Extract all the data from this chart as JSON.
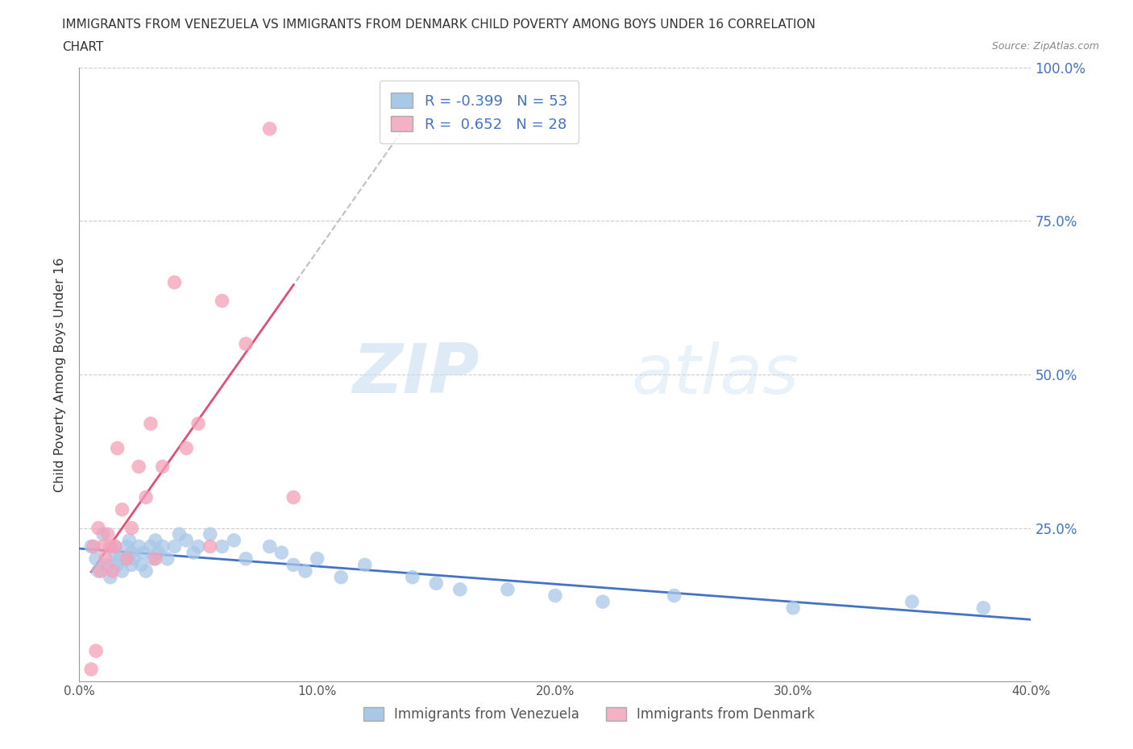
{
  "title_line1": "IMMIGRANTS FROM VENEZUELA VS IMMIGRANTS FROM DENMARK CHILD POVERTY AMONG BOYS UNDER 16 CORRELATION",
  "title_line2": "CHART",
  "source_text": "Source: ZipAtlas.com",
  "ylabel": "Child Poverty Among Boys Under 16",
  "watermark_zip": "ZIP",
  "watermark_atlas": "atlas",
  "r_venezuela": -0.399,
  "n_venezuela": 53,
  "r_denmark": 0.652,
  "n_denmark": 28,
  "xlim": [
    0.0,
    0.4
  ],
  "ylim": [
    0.0,
    1.0
  ],
  "yticks": [
    0.0,
    0.25,
    0.5,
    0.75,
    1.0
  ],
  "ytick_labels_right": [
    "",
    "25.0%",
    "50.0%",
    "75.0%",
    "100.0%"
  ],
  "xticks": [
    0.0,
    0.1,
    0.2,
    0.3,
    0.4
  ],
  "xtick_labels": [
    "0.0%",
    "10.0%",
    "20.0%",
    "30.0%",
    "40.0%"
  ],
  "color_venezuela": "#a8c8e8",
  "color_denmark": "#f4a0b8",
  "line_color_venezuela": "#4472c4",
  "line_color_denmark": "#e0507a",
  "line_color_denmark_dashed": "#b0b0b0",
  "legend_color_venezuela": "#a8c8e8",
  "legend_color_denmark": "#f4b0c4",
  "background_color": "#ffffff",
  "grid_color": "#aaaaaa",
  "venezuela_x": [
    0.005,
    0.007,
    0.008,
    0.01,
    0.012,
    0.013,
    0.015,
    0.015,
    0.016,
    0.017,
    0.018,
    0.02,
    0.02,
    0.021,
    0.022,
    0.022,
    0.023,
    0.025,
    0.026,
    0.027,
    0.028,
    0.03,
    0.031,
    0.032,
    0.033,
    0.035,
    0.037,
    0.04,
    0.042,
    0.045,
    0.048,
    0.05,
    0.055,
    0.06,
    0.065,
    0.07,
    0.08,
    0.085,
    0.09,
    0.095,
    0.1,
    0.11,
    0.12,
    0.14,
    0.15,
    0.16,
    0.18,
    0.2,
    0.22,
    0.25,
    0.3,
    0.35,
    0.38
  ],
  "venezuela_y": [
    0.22,
    0.2,
    0.18,
    0.24,
    0.19,
    0.17,
    0.22,
    0.21,
    0.19,
    0.2,
    0.18,
    0.22,
    0.2,
    0.23,
    0.21,
    0.19,
    0.2,
    0.22,
    0.19,
    0.21,
    0.18,
    0.22,
    0.2,
    0.23,
    0.21,
    0.22,
    0.2,
    0.22,
    0.24,
    0.23,
    0.21,
    0.22,
    0.24,
    0.22,
    0.23,
    0.2,
    0.22,
    0.21,
    0.19,
    0.18,
    0.2,
    0.17,
    0.19,
    0.17,
    0.16,
    0.15,
    0.15,
    0.14,
    0.13,
    0.14,
    0.12,
    0.13,
    0.12
  ],
  "denmark_x": [
    0.005,
    0.006,
    0.007,
    0.008,
    0.009,
    0.01,
    0.011,
    0.012,
    0.013,
    0.014,
    0.015,
    0.016,
    0.018,
    0.02,
    0.022,
    0.025,
    0.028,
    0.03,
    0.032,
    0.035,
    0.04,
    0.045,
    0.05,
    0.055,
    0.06,
    0.07,
    0.08,
    0.09
  ],
  "denmark_y": [
    0.02,
    0.22,
    0.05,
    0.25,
    0.18,
    0.22,
    0.2,
    0.24,
    0.22,
    0.18,
    0.22,
    0.38,
    0.28,
    0.2,
    0.25,
    0.35,
    0.3,
    0.42,
    0.2,
    0.35,
    0.65,
    0.38,
    0.42,
    0.22,
    0.62,
    0.55,
    0.9,
    0.3
  ]
}
